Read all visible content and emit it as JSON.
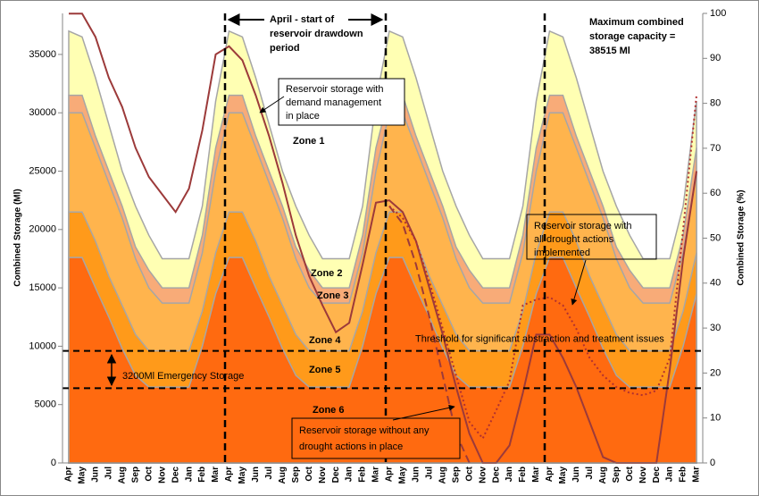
{
  "chart_data": {
    "type": "area",
    "categories": [
      "Apr",
      "May",
      "Jun",
      "Jul",
      "Aug",
      "Sep",
      "Oct",
      "Nov",
      "Dec",
      "Jan",
      "Feb",
      "Mar",
      "Apr",
      "May",
      "Jun",
      "Jul",
      "Aug",
      "Sep",
      "Oct",
      "Nov",
      "Dec",
      "Jan",
      "Feb",
      "Mar",
      "Apr",
      "May",
      "Jun",
      "Jul",
      "Aug",
      "Sep",
      "Oct",
      "Nov",
      "Dec",
      "Jan",
      "Feb",
      "Mar",
      "Apr",
      "May",
      "Jun",
      "Jul",
      "Aug",
      "Sep",
      "Oct",
      "Nov",
      "Dec",
      "Jan",
      "Feb",
      "Mar"
    ],
    "ylabel": "Combined Storage (Ml)",
    "y2label": "Combined Storage (%)",
    "ylim": [
      0,
      38515
    ],
    "yticks": [
      0,
      5000,
      10000,
      15000,
      20000,
      25000,
      30000,
      35000
    ],
    "y2lim": [
      0,
      100
    ],
    "y2ticks": [
      0,
      10,
      20,
      30,
      40,
      50,
      60,
      70,
      80,
      90,
      100
    ],
    "grid": false,
    "series": [
      {
        "kind": "area",
        "color": "#ffffb3",
        "values": [
          37000,
          36500,
          33000,
          29000,
          25000,
          22000,
          19500,
          17500,
          17500,
          17500,
          22000,
          31000,
          37000,
          36500,
          33000,
          29000,
          25000,
          22000,
          19500,
          17500,
          17500,
          17500,
          22000,
          31000,
          37000,
          36500,
          33000,
          29000,
          25000,
          22000,
          19500,
          17500,
          17500,
          17500,
          22000,
          31000,
          37000,
          36500,
          33000,
          29000,
          25000,
          22000,
          19500,
          17500,
          17500,
          17500,
          22000,
          31000
        ]
      },
      {
        "kind": "area",
        "color": "#f8ab78",
        "values": [
          31500,
          31500,
          28000,
          25000,
          22000,
          18500,
          16500,
          15000,
          15000,
          15000,
          19500,
          27000,
          31500,
          31500,
          28000,
          25000,
          22000,
          18500,
          16500,
          15000,
          15000,
          15000,
          19500,
          27000,
          31500,
          31500,
          28000,
          25000,
          22000,
          18500,
          16500,
          15000,
          15000,
          15000,
          19500,
          27000,
          31500,
          31500,
          28000,
          25000,
          22000,
          18500,
          16500,
          15000,
          15000,
          15000,
          19500,
          27000
        ]
      },
      {
        "kind": "area",
        "color": "#ffb44d",
        "values": [
          30000,
          30000,
          27000,
          24000,
          21000,
          17500,
          15000,
          13700,
          13700,
          13700,
          18000,
          25000,
          30000,
          30000,
          27000,
          24000,
          21000,
          17500,
          15000,
          13700,
          13700,
          13700,
          18000,
          25000,
          30000,
          30000,
          27000,
          24000,
          21000,
          17500,
          15000,
          13700,
          13700,
          13700,
          18000,
          25000,
          30000,
          30000,
          27000,
          24000,
          21000,
          17500,
          15000,
          13700,
          13700,
          13700,
          18000,
          25000
        ]
      },
      {
        "kind": "area",
        "color": "#ff9a1a",
        "values": [
          21500,
          21500,
          19000,
          16000,
          13500,
          11000,
          9600,
          9600,
          9600,
          9600,
          13000,
          18000,
          21500,
          21500,
          19000,
          16000,
          13500,
          11000,
          9600,
          9600,
          9600,
          9600,
          13000,
          18000,
          21500,
          21500,
          19000,
          16000,
          13500,
          11000,
          9600,
          9600,
          9600,
          9600,
          13000,
          18000,
          21500,
          21500,
          19000,
          16000,
          13500,
          11000,
          9600,
          9600,
          9600,
          9600,
          13000,
          18000
        ]
      },
      {
        "kind": "area",
        "color": "#ff6a10",
        "values": [
          17600,
          17600,
          15000,
          12500,
          9800,
          7500,
          6500,
          6500,
          6500,
          6500,
          10000,
          14500,
          17600,
          17600,
          15000,
          12500,
          9800,
          7500,
          6500,
          6500,
          6500,
          6500,
          10000,
          14500,
          17600,
          17600,
          15000,
          12500,
          9800,
          7500,
          6500,
          6500,
          6500,
          6500,
          10000,
          14500,
          17600,
          17600,
          15000,
          12500,
          9800,
          7500,
          6500,
          6500,
          6500,
          6500,
          10000,
          14500
        ]
      },
      {
        "kind": "line",
        "dash": "solid",
        "color": "#9c3a3a",
        "values": [
          38500,
          38500,
          36500,
          33000,
          30500,
          27000,
          24500,
          23000,
          21500,
          23500,
          28500,
          35000,
          35700,
          34500,
          31500,
          28000,
          24000,
          19500,
          16000,
          13500,
          11200,
          12000,
          17000,
          22300,
          22500,
          21500,
          19000,
          15000,
          11000,
          6500,
          2500,
          0,
          0,
          1500,
          6000,
          11000,
          11000,
          9000,
          6500,
          3500,
          500,
          0,
          0,
          0,
          0,
          8000,
          17500,
          25000
        ]
      },
      {
        "kind": "line",
        "dash": "dashed",
        "color": "#9c3a3a",
        "values": [
          null,
          null,
          null,
          null,
          null,
          null,
          null,
          null,
          null,
          null,
          null,
          null,
          null,
          null,
          null,
          null,
          null,
          null,
          null,
          null,
          null,
          null,
          null,
          null,
          22000,
          20500,
          17000,
          12500,
          7500,
          2500,
          0,
          null,
          null,
          null,
          null,
          null,
          null,
          null,
          null,
          null,
          null,
          null,
          null,
          null,
          null,
          null,
          null,
          null
        ]
      },
      {
        "kind": "line",
        "dash": "dotted",
        "color": "#b03030",
        "values": [
          null,
          null,
          null,
          null,
          null,
          null,
          null,
          null,
          null,
          null,
          null,
          null,
          null,
          null,
          null,
          null,
          null,
          null,
          null,
          null,
          null,
          null,
          null,
          null,
          22000,
          21000,
          19000,
          15500,
          11500,
          7500,
          3500,
          2100,
          4500,
          7000,
          13500,
          14000,
          14200,
          13500,
          11500,
          9000,
          7500,
          6500,
          6000,
          5800,
          6200,
          9000,
          20000,
          31500
        ]
      }
    ],
    "reference_lines": [
      {
        "value": 9600,
        "label": "Threshold for significant abstraction and treatment  issues"
      },
      {
        "value": 6400
      }
    ],
    "annotations": {
      "drawdown": [
        "April - start of",
        "reservoir drawdown",
        "period"
      ],
      "max_capacity": [
        "Maximum combined",
        "storage capacity =",
        "38515 Ml"
      ],
      "demand": [
        "Reservoir storage with",
        "demand management",
        "in place"
      ],
      "drought": [
        "Reservoir storage with",
        "all drought actions",
        "implemented"
      ],
      "no_actions": [
        "Reservoir storage without any",
        "drought actions in place"
      ],
      "emergency": "3200Ml Emergency Storage",
      "zones": [
        "Zone 1",
        "Zone 2",
        "Zone 3",
        "Zone 4",
        "Zone 5",
        "Zone 6"
      ]
    }
  }
}
